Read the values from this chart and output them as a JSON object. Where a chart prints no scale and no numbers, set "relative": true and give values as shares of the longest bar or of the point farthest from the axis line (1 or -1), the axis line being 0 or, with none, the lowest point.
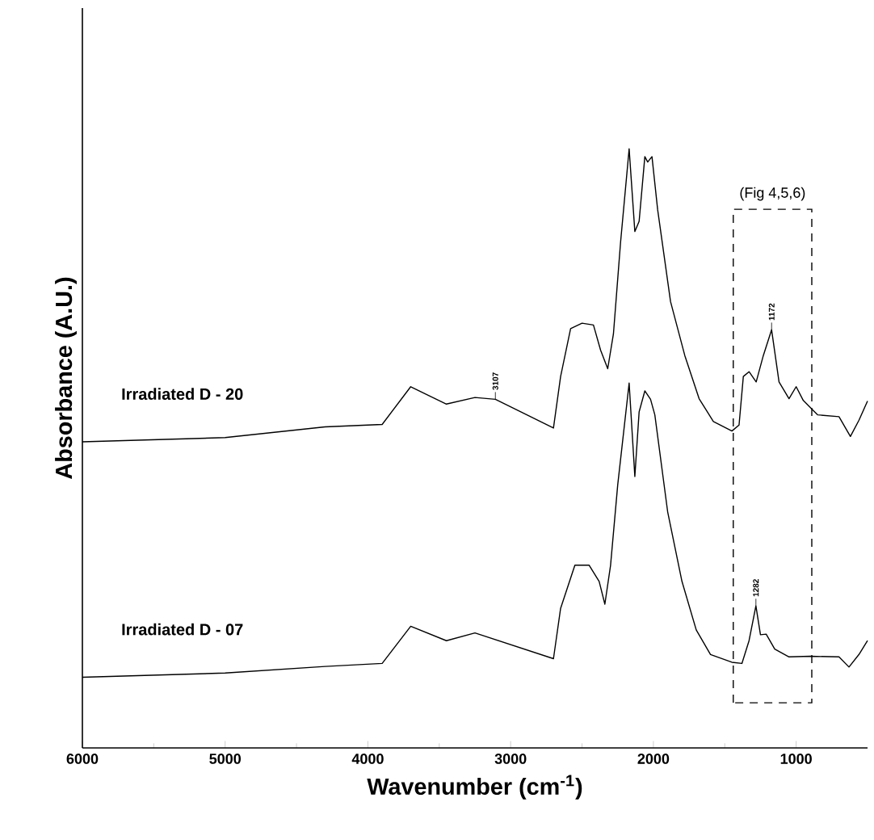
{
  "chart_data": {
    "type": "line",
    "relative": true,
    "xlabel": "Wavenumber (cm$^{-1}$)",
    "ylabel": "Absorbance (A.U.)",
    "xlim": [
      6000,
      500
    ],
    "xticks": [
      6000,
      5000,
      4000,
      3000,
      2000,
      1000
    ],
    "series": [
      {
        "name": "Irradiated D - 20",
        "color": "#000000",
        "x": [
          6000,
          5000,
          4300,
          3900,
          3700,
          3450,
          3250,
          3107,
          2700,
          2650,
          2580,
          2500,
          2420,
          2370,
          2320,
          2280,
          2230,
          2170,
          2130,
          2100,
          2060,
          2040,
          2010,
          1970,
          1880,
          1780,
          1680,
          1580,
          1450,
          1400,
          1370,
          1330,
          1280,
          1230,
          1172,
          1120,
          1050,
          1000,
          950,
          850,
          700,
          620,
          560,
          500
        ],
        "values": [
          0.511,
          0.518,
          0.536,
          0.54,
          0.603,
          0.574,
          0.585,
          0.582,
          0.534,
          0.62,
          0.7,
          0.709,
          0.706,
          0.664,
          0.633,
          0.691,
          0.844,
          1.0,
          0.862,
          0.879,
          0.987,
          0.978,
          0.987,
          0.898,
          0.745,
          0.655,
          0.583,
          0.545,
          0.529,
          0.539,
          0.62,
          0.628,
          0.611,
          0.655,
          0.698,
          0.611,
          0.583,
          0.603,
          0.58,
          0.556,
          0.553,
          0.52,
          0.547,
          0.579
        ]
      },
      {
        "name": "Irradiated D - 07",
        "color": "#000000",
        "x": [
          6000,
          5000,
          4300,
          3900,
          3700,
          3450,
          3250,
          2700,
          2650,
          2550,
          2450,
          2380,
          2340,
          2300,
          2250,
          2170,
          2130,
          2100,
          2060,
          2020,
          1990,
          1900,
          1800,
          1700,
          1600,
          1450,
          1380,
          1330,
          1282,
          1250,
          1210,
          1150,
          1050,
          900,
          700,
          630,
          560,
          500
        ],
        "values": [
          0.118,
          0.125,
          0.136,
          0.141,
          0.203,
          0.179,
          0.192,
          0.149,
          0.233,
          0.305,
          0.305,
          0.278,
          0.24,
          0.305,
          0.439,
          0.609,
          0.453,
          0.561,
          0.596,
          0.582,
          0.556,
          0.394,
          0.278,
          0.197,
          0.156,
          0.143,
          0.141,
          0.179,
          0.237,
          0.189,
          0.19,
          0.165,
          0.152,
          0.153,
          0.152,
          0.135,
          0.156,
          0.179
        ]
      }
    ],
    "annotations": [
      {
        "text": "3107",
        "x": 3107,
        "y": 0.582
      },
      {
        "text": "1172",
        "x": 1172,
        "y": 0.698
      },
      {
        "text": "1282",
        "x": 1282,
        "y": 0.237
      },
      "(Fig 4,5,6)"
    ]
  }
}
